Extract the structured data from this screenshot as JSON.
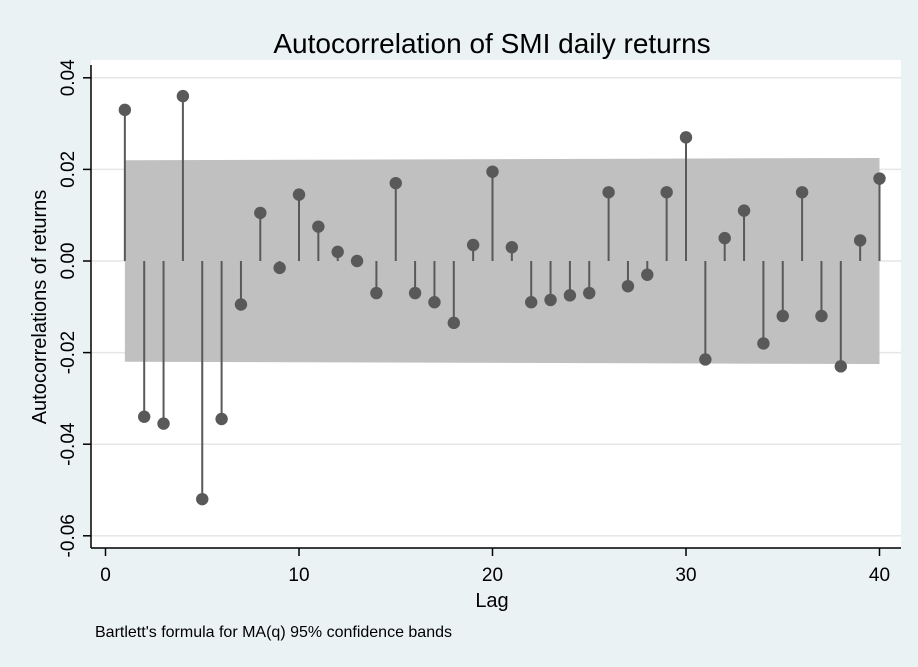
{
  "chart_data": {
    "type": "stem",
    "title": "Autocorrelation of SMI daily returns",
    "xlabel": "Lag",
    "ylabel": "Autocorrelations of returns",
    "note": "Bartlett's formula for MA(q) 95% confidence bands",
    "xlim": [
      0,
      40
    ],
    "ylim": [
      -0.06,
      0.04
    ],
    "xticks": [
      0,
      10,
      20,
      30,
      40
    ],
    "yticks": [
      -0.06,
      -0.04,
      -0.02,
      0.0,
      0.02,
      0.04
    ],
    "ytick_labels": [
      "-0.06",
      "-0.04",
      "-0.02",
      "0.00",
      "0.02",
      "0.04"
    ],
    "grid": true,
    "colors": {
      "background": "#eaf2f3",
      "plot_area": "#ffffff",
      "band": "#c0c0c0",
      "marker": "#595959",
      "grid": "#e6e6e6"
    },
    "series": [
      {
        "lags": [
          1,
          2,
          3,
          4,
          5,
          6,
          7,
          8,
          9,
          10,
          11,
          12,
          13,
          14,
          15,
          16,
          17,
          18,
          19,
          20,
          21,
          22,
          23,
          24,
          25,
          26,
          27,
          28,
          29,
          30,
          31,
          32,
          33,
          34,
          35,
          36,
          37,
          38,
          39,
          40
        ],
        "values": [
          0.033,
          -0.034,
          -0.0355,
          0.036,
          -0.052,
          -0.0345,
          -0.0095,
          0.0105,
          -0.0015,
          0.0145,
          0.0075,
          0.002,
          0.0,
          -0.007,
          0.017,
          -0.007,
          -0.009,
          -0.0135,
          0.0035,
          0.0195,
          0.003,
          -0.009,
          -0.0085,
          -0.0075,
          -0.007,
          0.015,
          -0.0055,
          -0.003,
          0.015,
          0.027,
          -0.0215,
          0.005,
          0.011,
          -0.018,
          -0.012,
          0.015,
          -0.012,
          -0.023,
          0.0045,
          0.018
        ]
      }
    ],
    "confidence_band": {
      "lags": [
        1,
        40
      ],
      "upper": [
        0.022,
        0.0225
      ],
      "lower": [
        -0.022,
        -0.0225
      ]
    }
  }
}
